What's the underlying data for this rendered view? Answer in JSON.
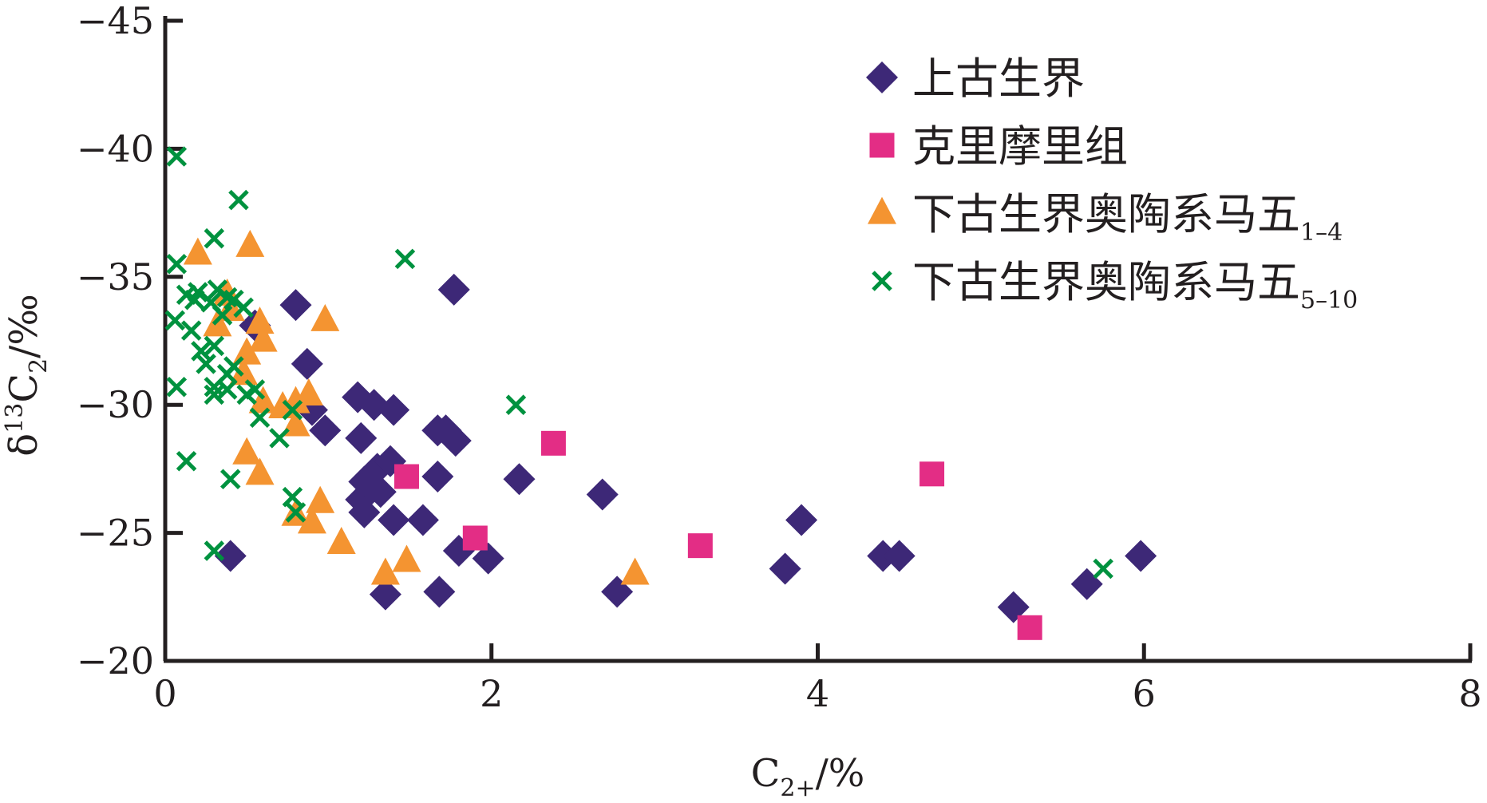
{
  "chart_data": {
    "type": "scatter",
    "xlabel": {
      "base": "C",
      "sub": "2+",
      "suffix": "/%"
    },
    "ylabel": {
      "prefix": "δ",
      "sup": "13",
      "base": "C",
      "sub": "2",
      "suffix": "/‰"
    },
    "xlim": [
      0,
      8
    ],
    "ylim": [
      -20,
      -45
    ],
    "y_axis": "reversed",
    "xticks": [
      0,
      2,
      4,
      6,
      8
    ],
    "xtick_labels": [
      "0",
      "2",
      "4",
      "6",
      "8"
    ],
    "yticks": [
      -45,
      -40,
      -35,
      -30,
      -25,
      -20
    ],
    "ytick_labels": [
      "−45",
      "−40",
      "−35",
      "−30",
      "−25",
      "−20"
    ],
    "grid": false,
    "legend_position": "top-right",
    "series": [
      {
        "name": "上古生界",
        "name_sub": "",
        "marker": "diamond",
        "color": "#3d2877",
        "points": [
          [
            0.4,
            -24.1
          ],
          [
            0.55,
            -33.1
          ],
          [
            0.8,
            -33.9
          ],
          [
            0.87,
            -31.6
          ],
          [
            0.9,
            -29.8
          ],
          [
            0.98,
            -29.0
          ],
          [
            1.18,
            -30.3
          ],
          [
            1.2,
            -28.7
          ],
          [
            1.22,
            -27.0
          ],
          [
            1.2,
            -26.3
          ],
          [
            1.22,
            -25.8
          ],
          [
            1.28,
            -30.0
          ],
          [
            1.3,
            -27.5
          ],
          [
            1.32,
            -26.6
          ],
          [
            1.35,
            -22.6
          ],
          [
            1.38,
            -27.8
          ],
          [
            1.4,
            -29.8
          ],
          [
            1.4,
            -25.5
          ],
          [
            1.58,
            -25.5
          ],
          [
            1.67,
            -29.0
          ],
          [
            1.67,
            -27.2
          ],
          [
            1.68,
            -22.7
          ],
          [
            1.72,
            -29.0
          ],
          [
            1.78,
            -28.6
          ],
          [
            1.77,
            -34.5
          ],
          [
            1.8,
            -24.3
          ],
          [
            1.98,
            -24.0
          ],
          [
            2.17,
            -27.1
          ],
          [
            2.68,
            -26.5
          ],
          [
            2.77,
            -22.7
          ],
          [
            3.8,
            -23.6
          ],
          [
            3.9,
            -25.5
          ],
          [
            4.4,
            -24.1
          ],
          [
            4.5,
            -24.1
          ],
          [
            5.2,
            -22.1
          ],
          [
            5.65,
            -23.0
          ],
          [
            5.98,
            -24.1
          ]
        ]
      },
      {
        "name": "克里摩里组",
        "name_sub": "",
        "marker": "square",
        "color": "#e32d85",
        "points": [
          [
            1.48,
            -27.2
          ],
          [
            1.9,
            -24.8
          ],
          [
            2.38,
            -28.5
          ],
          [
            3.28,
            -24.5
          ],
          [
            4.7,
            -27.3
          ],
          [
            5.3,
            -21.3
          ]
        ]
      },
      {
        "name": "下古生界奥陶系马五",
        "name_sub": "1-4",
        "marker": "triangle",
        "color": "#f49431",
        "points": [
          [
            0.2,
            -35.9
          ],
          [
            0.32,
            -33.1
          ],
          [
            0.38,
            -34.3
          ],
          [
            0.4,
            -33.7
          ],
          [
            0.48,
            -31.2
          ],
          [
            0.5,
            -32.0
          ],
          [
            0.5,
            -28.1
          ],
          [
            0.52,
            -36.2
          ],
          [
            0.58,
            -33.2
          ],
          [
            0.58,
            -27.3
          ],
          [
            0.6,
            -32.5
          ],
          [
            0.6,
            -30.1
          ],
          [
            0.72,
            -29.9
          ],
          [
            0.8,
            -30.1
          ],
          [
            0.8,
            -29.2
          ],
          [
            0.8,
            -25.7
          ],
          [
            0.88,
            -30.4
          ],
          [
            0.9,
            -25.4
          ],
          [
            0.95,
            -26.2
          ],
          [
            0.98,
            -33.3
          ],
          [
            1.08,
            -24.6
          ],
          [
            1.35,
            -23.4
          ],
          [
            1.48,
            -23.9
          ],
          [
            2.88,
            -23.4
          ]
        ]
      },
      {
        "name": "下古生界奥陶系马五",
        "name_sub": "5-10",
        "marker": "x",
        "color": "#00923f",
        "points": [
          [
            0.07,
            -39.7
          ],
          [
            0.07,
            -35.5
          ],
          [
            0.06,
            -33.3
          ],
          [
            0.07,
            -30.7
          ],
          [
            0.13,
            -27.8
          ],
          [
            0.13,
            -34.3
          ],
          [
            0.16,
            -32.9
          ],
          [
            0.18,
            -34.1
          ],
          [
            0.2,
            -34.4
          ],
          [
            0.22,
            -32.1
          ],
          [
            0.25,
            -31.6
          ],
          [
            0.28,
            -34.0
          ],
          [
            0.3,
            -30.7
          ],
          [
            0.3,
            -30.4
          ],
          [
            0.3,
            -24.3
          ],
          [
            0.3,
            -36.5
          ],
          [
            0.3,
            -32.3
          ],
          [
            0.32,
            -34.5
          ],
          [
            0.35,
            -33.5
          ],
          [
            0.38,
            -34.2
          ],
          [
            0.38,
            -31.2
          ],
          [
            0.38,
            -30.6
          ],
          [
            0.4,
            -27.1
          ],
          [
            0.42,
            -34.1
          ],
          [
            0.42,
            -31.5
          ],
          [
            0.45,
            -38.0
          ],
          [
            0.48,
            -33.8
          ],
          [
            0.5,
            -30.4
          ],
          [
            0.55,
            -30.6
          ],
          [
            0.58,
            -29.5
          ],
          [
            0.7,
            -28.7
          ],
          [
            0.78,
            -29.8
          ],
          [
            0.78,
            -26.4
          ],
          [
            0.8,
            -25.8
          ],
          [
            1.47,
            -35.7
          ],
          [
            2.15,
            -30.0
          ],
          [
            5.75,
            -23.6
          ]
        ]
      }
    ]
  }
}
